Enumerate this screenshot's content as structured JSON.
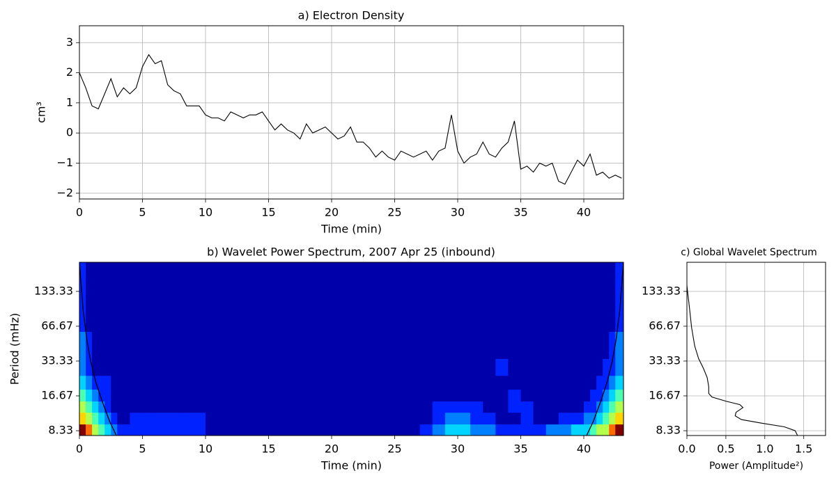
{
  "chart_data": [
    {
      "type": "line",
      "title": "a) Electron Density",
      "xlabel": "Time (min)",
      "ylabel": "cm³",
      "x": [
        0,
        0.5,
        1,
        1.5,
        2,
        2.5,
        3,
        3.5,
        4,
        4.5,
        5,
        5.5,
        6,
        6.5,
        7,
        7.5,
        8,
        8.5,
        9,
        9.5,
        10,
        10.5,
        11,
        11.5,
        12,
        12.5,
        13,
        13.5,
        14,
        14.5,
        15,
        15.5,
        16,
        16.5,
        17,
        17.5,
        18,
        18.5,
        19,
        19.5,
        20,
        20.5,
        21,
        21.5,
        22,
        22.5,
        23,
        23.5,
        24,
        24.5,
        25,
        25.5,
        26,
        26.5,
        27,
        27.5,
        28,
        28.5,
        29,
        29.5,
        30,
        30.5,
        31,
        31.5,
        32,
        32.5,
        33,
        33.5,
        34,
        34.5,
        35,
        35.5,
        36,
        36.5,
        37,
        37.5,
        38,
        38.5,
        39,
        39.5,
        40,
        40.5,
        41,
        41.5,
        42,
        42.5,
        43
      ],
      "y": [
        2.0,
        1.5,
        0.9,
        0.8,
        1.3,
        1.8,
        1.2,
        1.5,
        1.3,
        1.5,
        2.2,
        2.6,
        2.3,
        2.4,
        1.6,
        1.4,
        1.3,
        0.9,
        0.9,
        0.9,
        0.6,
        0.5,
        0.5,
        0.4,
        0.7,
        0.6,
        0.5,
        0.6,
        0.6,
        0.7,
        0.4,
        0.1,
        0.3,
        0.1,
        0.0,
        -0.2,
        0.3,
        0.0,
        0.1,
        0.2,
        0.0,
        -0.2,
        -0.1,
        0.2,
        -0.3,
        -0.3,
        -0.5,
        -0.8,
        -0.6,
        -0.8,
        -0.9,
        -0.6,
        -0.7,
        -0.8,
        -0.7,
        -0.6,
        -0.9,
        -0.6,
        -0.5,
        0.6,
        -0.6,
        -1.0,
        -0.8,
        -0.7,
        -0.3,
        -0.7,
        -0.8,
        -0.5,
        -0.3,
        0.4,
        -1.2,
        -1.1,
        -1.3,
        -1.0,
        -1.1,
        -1.0,
        -1.6,
        -1.7,
        -1.3,
        -0.9,
        -1.1,
        -0.7,
        -1.4,
        -1.3,
        -1.5,
        -1.4,
        -1.5
      ],
      "color": "#000000",
      "xlim": [
        0,
        43.15
      ],
      "ylim": [
        -2.19,
        3.56
      ],
      "xticks": [
        0,
        5,
        10,
        15,
        20,
        25,
        30,
        35,
        40
      ],
      "yticks": [
        {
          "value": -2,
          "label": "−2"
        },
        {
          "value": -1,
          "label": "−1"
        },
        0,
        1,
        2,
        3
      ],
      "grid": true
    },
    {
      "type": "contour",
      "title": "b) Wavelet Power Spectrum, 2007 Apr 25 (inbound)",
      "xlabel": "Time (min)",
      "ylabel": "Period (mHz)",
      "xlim": [
        0,
        43.15
      ],
      "ylim": [
        7.57,
        238
      ],
      "ylog": true,
      "xticks": [
        0,
        5,
        10,
        15,
        20,
        25,
        30,
        35,
        40
      ],
      "yticks": [
        8.33,
        16.67,
        33.33,
        66.67,
        133.33
      ],
      "grid": false,
      "colors": [
        "#0000aa",
        "#0022ff",
        "#0080ff",
        "#00d4ff",
        "#4dffb3",
        "#b3ff4d",
        "#ffd400",
        "#ff6a00",
        "#d40000",
        "#800000"
      ],
      "x_edges": [
        0,
        0.5,
        1,
        1.5,
        2,
        2.5,
        3,
        4,
        5,
        6,
        8,
        10,
        12,
        14,
        16,
        18,
        20,
        22,
        24,
        26,
        27,
        28,
        29,
        30,
        31,
        32,
        33,
        34,
        35,
        36,
        37,
        38,
        39,
        40,
        40.5,
        41,
        41.5,
        42,
        42.5,
        43.15
      ],
      "y_edges": [
        7.57,
        9.5,
        12,
        15,
        19,
        25,
        35,
        60,
        238
      ],
      "values": [
        [
          9,
          7,
          5,
          4,
          3,
          2,
          1,
          1,
          1,
          1,
          1,
          0,
          0,
          0,
          0,
          0,
          0,
          0,
          0,
          0,
          1,
          2,
          3,
          3,
          2,
          2,
          1,
          1,
          1,
          1,
          2,
          2,
          3,
          3,
          4,
          5,
          5,
          7,
          9
        ],
        [
          6,
          5,
          4,
          3,
          2,
          1,
          0,
          1,
          1,
          1,
          1,
          0,
          0,
          0,
          0,
          0,
          0,
          0,
          0,
          0,
          0,
          1,
          2,
          2,
          1,
          1,
          0,
          0,
          1,
          0,
          0,
          1,
          1,
          2,
          2,
          3,
          4,
          5,
          6
        ],
        [
          5,
          4,
          3,
          2,
          1,
          0,
          0,
          0,
          0,
          0,
          0,
          0,
          0,
          0,
          0,
          0,
          0,
          0,
          0,
          0,
          0,
          1,
          1,
          1,
          1,
          0,
          0,
          1,
          1,
          0,
          0,
          0,
          0,
          1,
          1,
          2,
          3,
          4,
          5
        ],
        [
          4,
          3,
          2,
          1,
          1,
          0,
          0,
          0,
          0,
          0,
          0,
          0,
          0,
          0,
          0,
          0,
          0,
          0,
          0,
          0,
          0,
          0,
          0,
          0,
          0,
          0,
          0,
          1,
          0,
          0,
          0,
          0,
          0,
          0,
          1,
          1,
          2,
          3,
          4
        ],
        [
          3,
          2,
          1,
          1,
          1,
          0,
          0,
          0,
          0,
          0,
          0,
          0,
          0,
          0,
          0,
          0,
          0,
          0,
          0,
          0,
          0,
          0,
          0,
          0,
          0,
          0,
          0,
          0,
          0,
          0,
          0,
          0,
          0,
          0,
          0,
          1,
          1,
          2,
          3
        ],
        [
          2,
          1,
          0,
          0,
          0,
          0,
          0,
          0,
          0,
          0,
          0,
          0,
          0,
          0,
          0,
          0,
          0,
          0,
          0,
          0,
          0,
          0,
          0,
          0,
          0,
          0,
          1,
          0,
          0,
          0,
          0,
          0,
          0,
          0,
          0,
          0,
          1,
          1,
          2
        ],
        [
          2,
          1,
          0,
          0,
          0,
          0,
          0,
          0,
          0,
          0,
          0,
          0,
          0,
          0,
          0,
          0,
          0,
          0,
          0,
          0,
          0,
          0,
          0,
          0,
          0,
          0,
          0,
          0,
          0,
          0,
          0,
          0,
          0,
          0,
          0,
          0,
          0,
          1,
          2
        ],
        [
          1,
          0,
          0,
          0,
          0,
          0,
          0,
          0,
          0,
          0,
          0,
          0,
          0,
          0,
          0,
          0,
          0,
          0,
          0,
          0,
          0,
          0,
          0,
          0,
          0,
          0,
          0,
          0,
          0,
          0,
          0,
          0,
          0,
          0,
          0,
          0,
          0,
          0,
          1
        ]
      ],
      "coi": [
        {
          "color": "#000000",
          "x": [
            0,
            0.3,
            0.6,
            0.9,
            1.3,
            1.8,
            2.4,
            2.93
          ],
          "y": [
            238,
            90,
            50,
            33,
            22,
            15,
            10,
            7.57
          ]
        },
        {
          "color": "#000000",
          "x": [
            40.22,
            40.75,
            41.35,
            41.85,
            42.25,
            42.55,
            42.85,
            43.15
          ],
          "y": [
            7.57,
            10,
            15,
            22,
            33,
            50,
            90,
            238
          ]
        }
      ]
    },
    {
      "type": "line",
      "title": "c) Global Wavelet Spectrum",
      "xlabel": "Power (Amplitude²)",
      "x": [
        1.42,
        1.39,
        1.25,
        0.95,
        0.7,
        0.62,
        0.63,
        0.72,
        0.68,
        0.5,
        0.32,
        0.28,
        0.28,
        0.26,
        0.21,
        0.15,
        0.1,
        0.06,
        0.03,
        0.01,
        0
      ],
      "y": [
        7.57,
        8.33,
        9.0,
        9.7,
        10.4,
        11.2,
        12.0,
        13.2,
        14.0,
        15.0,
        16.3,
        17.5,
        20,
        24,
        29,
        35,
        45,
        65,
        100,
        130,
        150
      ],
      "color": "#000000",
      "xlim": [
        0,
        1.78
      ],
      "ylim": [
        7.57,
        238
      ],
      "ylog": true,
      "xticks": [
        {
          "value": 0,
          "label": "0.0"
        },
        0.5,
        {
          "value": 1,
          "label": "1.0"
        },
        1.5
      ],
      "yticks": [
        8.33,
        16.67,
        33.33,
        66.67,
        133.33
      ],
      "grid": true
    }
  ]
}
